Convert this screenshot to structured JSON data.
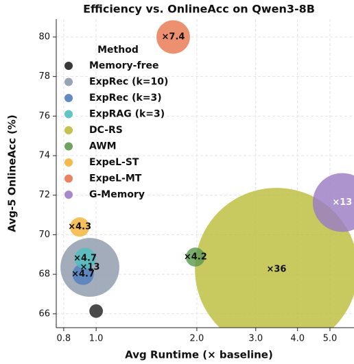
{
  "chart_data": {
    "type": "scatter",
    "title": "Efficiency vs. OnlineAcc on Qwen3-8B",
    "x_label": "Avg Runtime (× baseline)",
    "y_label": "Avg-5 OnlineAcc (%)",
    "legend_title": "Method",
    "x_scale": "log",
    "grid": true,
    "xlim": [
      0.76,
      5.9
    ],
    "ylim": [
      65.3,
      80.9
    ],
    "xticks": [
      0.8,
      {
        "value": 1,
        "label": "1.0"
      },
      {
        "value": 2,
        "label": "2.0"
      },
      {
        "value": 3,
        "label": "3.0"
      },
      {
        "value": 4,
        "label": "4.0"
      },
      {
        "value": 5,
        "label": "5.0"
      }
    ],
    "yticks": [
      66,
      68,
      70,
      72,
      74,
      76,
      78,
      80
    ],
    "series": [
      {
        "name": "Memory-free",
        "color": "#222222",
        "x": [
          1.0
        ],
        "values": [
          66.14
        ],
        "sizes": [
          3
        ],
        "value_labels": [
          null
        ]
      },
      {
        "name": "ExpRec (k=10)",
        "color": "#8e9aab",
        "x": [
          0.958
        ],
        "values": [
          68.35
        ],
        "sizes": [
          13
        ],
        "value_labels": [
          "×13"
        ]
      },
      {
        "name": "ExpRec (k=3)",
        "color": "#4f7fbf",
        "x": [
          0.914
        ],
        "values": [
          68.0
        ],
        "sizes": [
          4.7
        ],
        "value_labels": [
          "×4.7"
        ]
      },
      {
        "name": "ExpRAG (k=3)",
        "color": "#4fbfbf",
        "x": [
          0.927
        ],
        "values": [
          68.8
        ],
        "sizes": [
          4.7
        ],
        "value_labels": [
          "×4.7"
        ]
      },
      {
        "name": "DC-RS",
        "color": "#bcbd3a",
        "x": [
          3.46
        ],
        "values": [
          68.25
        ],
        "sizes": [
          36
        ],
        "value_labels": [
          "×36"
        ]
      },
      {
        "name": "AWM",
        "color": "#5e9a50",
        "x": [
          1.98
        ],
        "values": [
          68.87
        ],
        "sizes": [
          4.2
        ],
        "value_labels": [
          "×4.2"
        ]
      },
      {
        "name": "ExpeL-ST",
        "color": "#f5b335",
        "x": [
          0.893
        ],
        "values": [
          70.39
        ],
        "sizes": [
          4.3
        ],
        "value_labels": [
          "×4.3"
        ]
      },
      {
        "name": "ExpeL-MT",
        "color": "#e8774f",
        "x": [
          1.7
        ],
        "values": [
          80.0
        ],
        "sizes": [
          7.4
        ],
        "value_labels": [
          "×7.4"
        ]
      },
      {
        "name": "G-Memory",
        "color": "#9b7cc4",
        "x": [
          5.44
        ],
        "values": [
          71.63
        ],
        "sizes": [
          13
        ],
        "value_labels": [
          "×13"
        ],
        "label_color": "#ffffff"
      }
    ]
  }
}
